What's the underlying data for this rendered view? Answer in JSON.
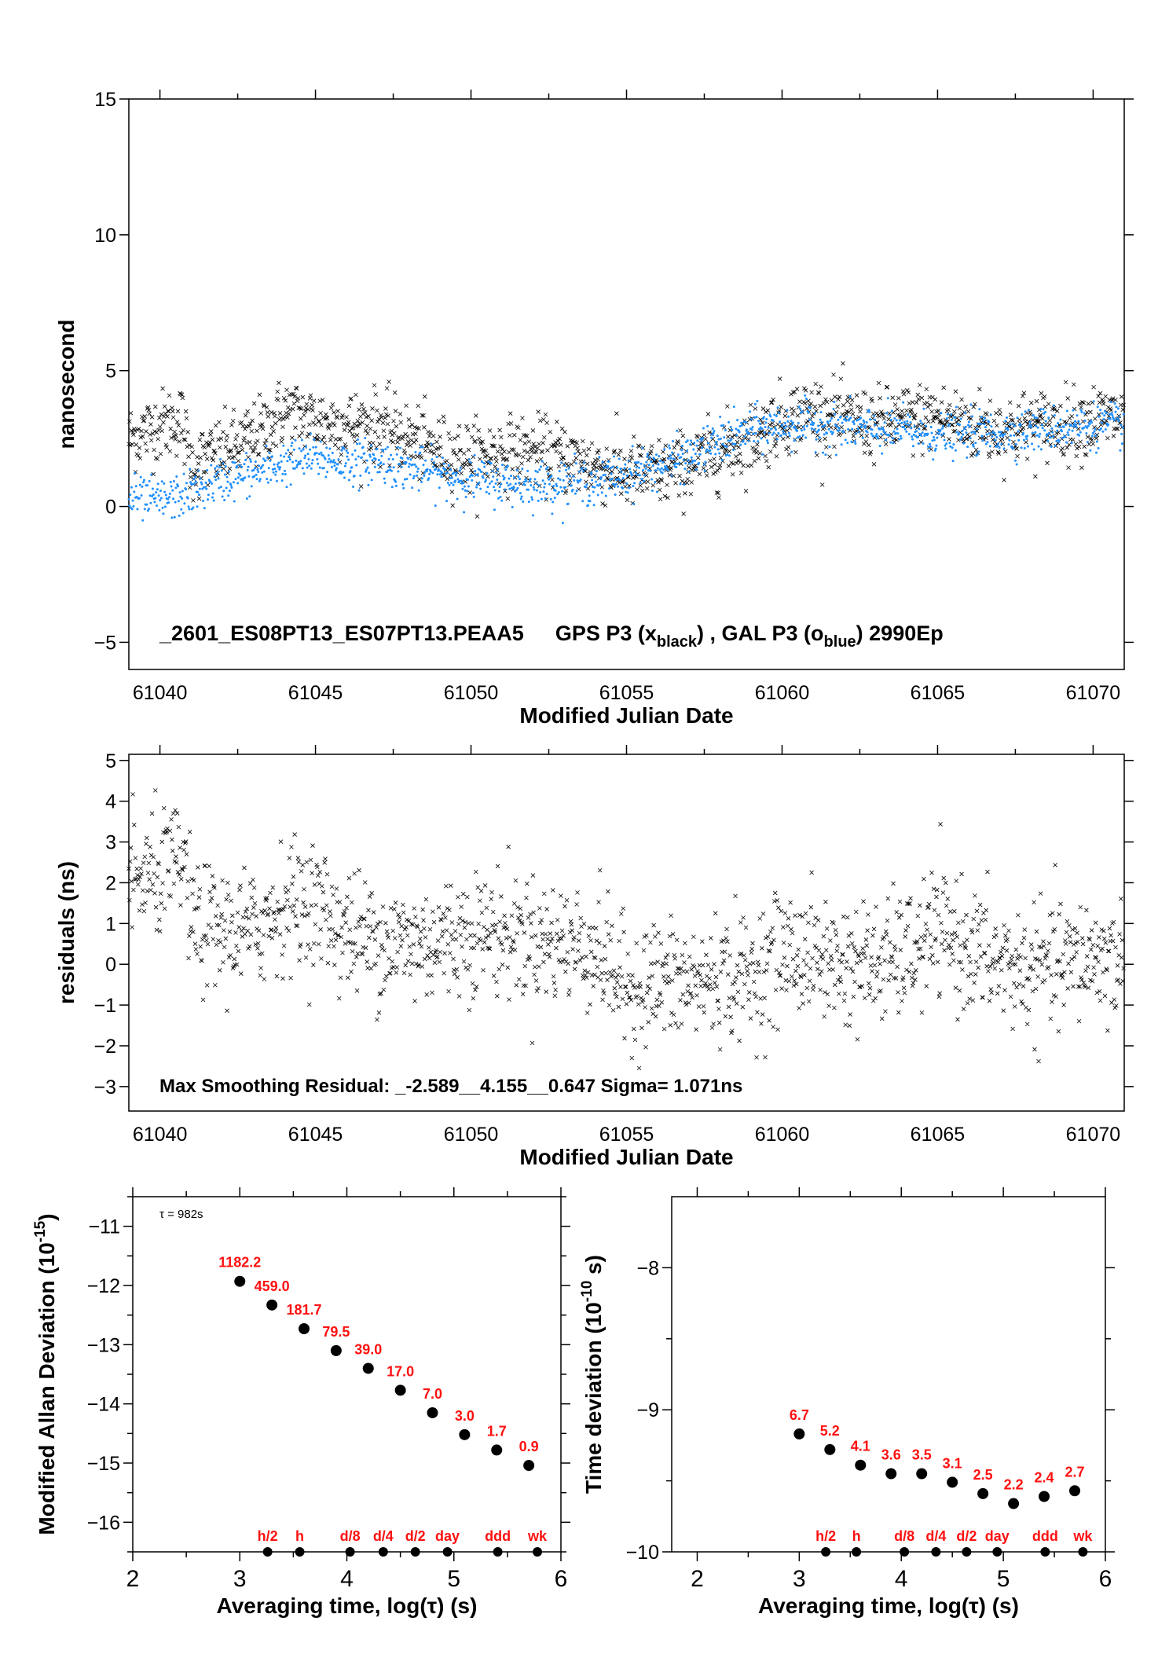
{
  "colors": {
    "gps": "#000000",
    "gal": "#1e8fff",
    "labels": "#ff1010"
  },
  "chart_data": [
    {
      "type": "scatter",
      "xlabel": "Modified Julian Date",
      "ylabel": "nanosecond",
      "xlim": [
        61039,
        61071
      ],
      "ylim": [
        -6,
        15
      ],
      "xticks": [
        61040,
        61045,
        61050,
        61055,
        61060,
        61065,
        61070
      ],
      "yticks": [
        -5,
        0,
        5,
        10,
        15
      ],
      "annotation": {
        "file": "_2601_ES08PT13_ES07PT13.PEAA5",
        "gps": "GPS P3 (x",
        "gps_sub": "black",
        "sep": ") ,  GAL P3 (o",
        "gal_sub": "blue",
        "end": ")  2990Ep"
      },
      "series": [
        {
          "marker": "x",
          "color": "#000000",
          "x": [
            61039,
            61040,
            61040.7,
            61041,
            61042,
            61043,
            61044,
            61045,
            61046,
            61047,
            61048,
            61049,
            61050,
            61051,
            61052,
            61053,
            61054,
            61055,
            61056,
            61057,
            61058,
            61059,
            61060,
            61061,
            61062,
            61063,
            61064,
            61065,
            61066,
            61067,
            61068,
            61069,
            61070,
            61071
          ],
          "y": [
            2.5,
            3.0,
            3.2,
            1.5,
            2.0,
            2.5,
            3.5,
            3.2,
            3.0,
            3.0,
            2.5,
            2.0,
            1.8,
            2.0,
            2.0,
            1.8,
            1.5,
            1.2,
            1.2,
            1.5,
            2.0,
            2.5,
            3.2,
            3.5,
            3.2,
            3.0,
            3.2,
            3.3,
            3.0,
            2.8,
            3.0,
            3.0,
            3.2,
            3.3
          ]
        },
        {
          "marker": "o",
          "color": "#1e8fff",
          "x": [
            61039,
            61040,
            61041,
            61042,
            61043,
            61044,
            61045,
            61046,
            61047,
            61048,
            61049,
            61050,
            61051,
            61052,
            61053,
            61054,
            61055,
            61056,
            61057,
            61058,
            61059,
            61060,
            61061,
            61062,
            61063,
            61064,
            61065,
            61066,
            61067,
            61068,
            61069,
            61070,
            61071
          ],
          "y": [
            0.3,
            0.2,
            0.5,
            1.0,
            1.2,
            1.6,
            1.8,
            1.6,
            1.7,
            1.4,
            1.2,
            1.0,
            0.9,
            0.8,
            0.9,
            0.9,
            1.2,
            1.5,
            1.8,
            2.4,
            2.8,
            3.0,
            3.0,
            2.9,
            2.8,
            2.8,
            2.6,
            2.7,
            2.7,
            2.8,
            2.9,
            3.0,
            3.0
          ]
        }
      ]
    },
    {
      "type": "scatter",
      "xlabel": "Modified Julian Date",
      "ylabel": "residuals (ns)",
      "xlim": [
        61039,
        61071
      ],
      "ylim": [
        -3.6,
        5.15
      ],
      "xticks": [
        61040,
        61045,
        61050,
        61055,
        61060,
        61065,
        61070
      ],
      "yticks": [
        -3,
        -2,
        -1,
        0,
        1,
        2,
        3,
        4,
        5
      ],
      "annotation": "Max Smoothing Residual: _-2.589__4.155__0.647  Sigma= 1.071ns",
      "series": [
        {
          "marker": "x",
          "color": "#000000",
          "x": [
            61039,
            61040,
            61040.8,
            61041,
            61042,
            61043,
            61044,
            61045,
            61046,
            61047,
            61048,
            61049,
            61050,
            61051,
            61052,
            61053,
            61054,
            61055,
            61056,
            61057,
            61058,
            61059,
            61060,
            61061,
            61062,
            61063,
            61064,
            61065,
            61066,
            61067,
            61068,
            61069,
            61070,
            61071
          ],
          "y": [
            2.0,
            2.2,
            2.5,
            1.0,
            0.8,
            0.8,
            1.5,
            1.5,
            0.8,
            0.6,
            0.5,
            0.6,
            0.8,
            0.8,
            0.6,
            0.5,
            0.4,
            -0.6,
            -0.4,
            -0.5,
            -0.3,
            -0.3,
            0.3,
            0.2,
            0.0,
            0.0,
            0.2,
            0.8,
            0.4,
            0.0,
            -0.2,
            0.0,
            0.2,
            0.0
          ]
        }
      ]
    },
    {
      "type": "scatter",
      "xlabel": "Averaging time, log(τ) (s)",
      "ylabel": "Modified Allan Deviation (10",
      "ylabel_sup": "-15",
      "ylabel_end": ")",
      "note": "τ = 982s",
      "xlim": [
        2,
        6
      ],
      "ylim": [
        -16.5,
        -10.5
      ],
      "xticks": [
        2,
        3,
        4,
        5,
        6
      ],
      "yticks": [
        -16,
        -15,
        -14,
        -13,
        -12,
        -11
      ],
      "x": [
        3.0,
        3.3,
        3.6,
        3.9,
        4.2,
        4.5,
        4.8,
        5.1,
        5.4,
        5.7
      ],
      "y": [
        -11.93,
        -12.33,
        -12.73,
        -13.1,
        -13.4,
        -13.77,
        -14.15,
        -14.52,
        -14.78,
        -15.04
      ],
      "labels": [
        "1182.2",
        "459.0",
        "181.7",
        "79.5",
        "39.0",
        "17.0",
        "7.0",
        "3.0",
        "1.7",
        "0.9"
      ],
      "markers": [
        {
          "x": 3.26,
          "label": "h/2"
        },
        {
          "x": 3.56,
          "label": "h"
        },
        {
          "x": 4.03,
          "label": "d/8"
        },
        {
          "x": 4.34,
          "label": "d/4"
        },
        {
          "x": 4.64,
          "label": "d/2"
        },
        {
          "x": 4.94,
          "label": "day"
        },
        {
          "x": 5.41,
          "label": "ddd"
        },
        {
          "x": 5.78,
          "label": "wk"
        }
      ]
    },
    {
      "type": "scatter",
      "xlabel": "Averaging time, log(τ) (s)",
      "ylabel": "Time deviation (10",
      "ylabel_sup": "-10",
      "ylabel_end": " s)",
      "xlim": [
        1.75,
        6
      ],
      "ylim": [
        -10,
        -7.5
      ],
      "xticks": [
        2,
        3,
        4,
        5,
        6
      ],
      "yticks": [
        -10,
        -9,
        -8
      ],
      "x": [
        3.0,
        3.3,
        3.6,
        3.9,
        4.2,
        4.5,
        4.8,
        5.1,
        5.4,
        5.7
      ],
      "y": [
        -9.17,
        -9.28,
        -9.39,
        -9.45,
        -9.45,
        -9.51,
        -9.59,
        -9.66,
        -9.61,
        -9.57
      ],
      "labels": [
        "6.7",
        "5.2",
        "4.1",
        "3.6",
        "3.5",
        "3.1",
        "2.5",
        "2.2",
        "2.4",
        "2.7"
      ],
      "markers": [
        {
          "x": 3.26,
          "label": "h/2"
        },
        {
          "x": 3.56,
          "label": "h"
        },
        {
          "x": 4.03,
          "label": "d/8"
        },
        {
          "x": 4.34,
          "label": "d/4"
        },
        {
          "x": 4.64,
          "label": "d/2"
        },
        {
          "x": 4.94,
          "label": "day"
        },
        {
          "x": 5.41,
          "label": "ddd"
        },
        {
          "x": 5.78,
          "label": "wk"
        }
      ]
    }
  ]
}
